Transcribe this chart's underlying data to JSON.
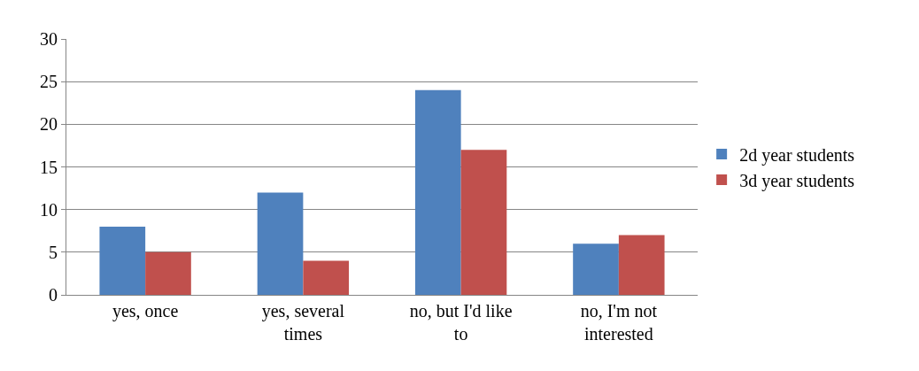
{
  "chart_data": {
    "type": "bar",
    "categories": [
      "yes, once",
      "yes, several times",
      "no, but I'd like to",
      "no, I'm not interested"
    ],
    "series": [
      {
        "name": "2d year students",
        "color": "#4f81bd",
        "values": [
          8,
          12,
          24,
          6
        ]
      },
      {
        "name": "3d year students",
        "color": "#c0504d",
        "values": [
          5,
          4,
          17,
          7
        ]
      }
    ],
    "ylim": [
      0,
      30
    ],
    "yticks": [
      0,
      5,
      10,
      15,
      20,
      25,
      30
    ],
    "grid": "y",
    "legend": "right"
  }
}
